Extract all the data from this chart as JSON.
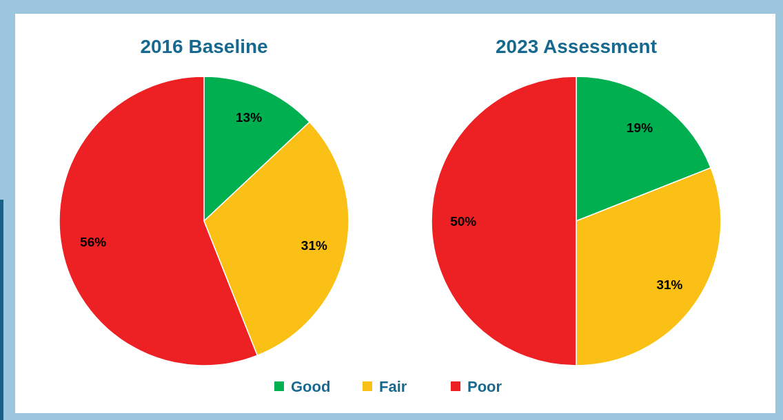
{
  "chart_data": [
    {
      "type": "pie",
      "title": "2016 Baseline",
      "categories": [
        "Good",
        "Fair",
        "Poor"
      ],
      "values": [
        13,
        31,
        56
      ],
      "value_labels": [
        "13%",
        "31%",
        "56%"
      ],
      "colors": [
        "#00b050",
        "#fbc015",
        "#ed2024"
      ],
      "legend": "bottom"
    },
    {
      "type": "pie",
      "title": "2023 Assessment",
      "categories": [
        null,
        null,
        null
      ],
      "values": [
        19,
        31,
        50
      ],
      "value_labels": [
        "19%",
        "31%",
        "50%"
      ],
      "colors": [
        "#00b050",
        "#fbc015",
        "#ed2024"
      ]
    }
  ]
}
